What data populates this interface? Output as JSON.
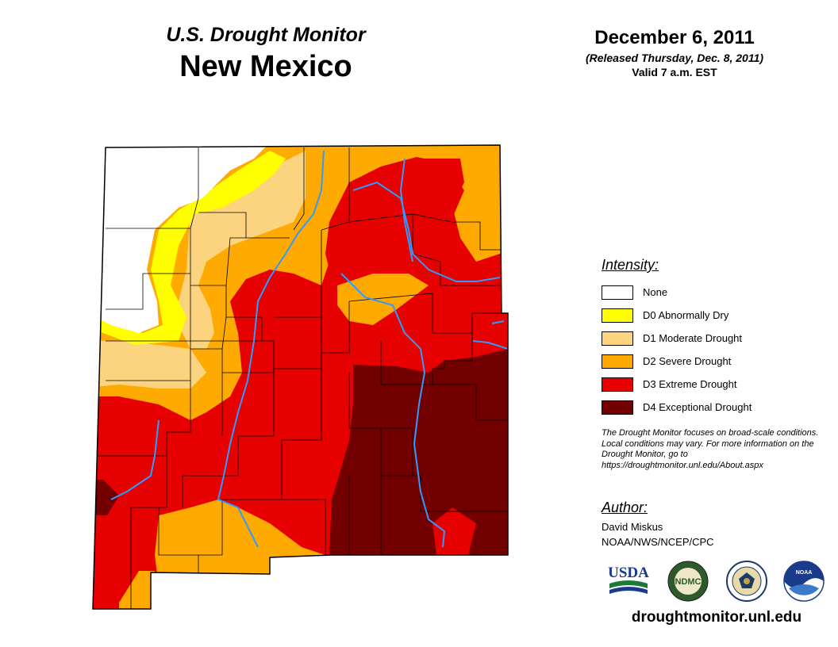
{
  "header": {
    "subtitle": "U.S. Drought Monitor",
    "state": "New Mexico",
    "date": "December 6, 2011",
    "released": "(Released Thursday, Dec. 8, 2011)",
    "valid": "Valid 7 a.m. EST"
  },
  "legend": {
    "title": "Intensity:",
    "items": [
      {
        "label": "None",
        "color": "#ffffff"
      },
      {
        "label": "D0 Abnormally Dry",
        "color": "#ffff00"
      },
      {
        "label": "D1 Moderate Drought",
        "color": "#fcd37f"
      },
      {
        "label": "D2 Severe Drought",
        "color": "#ffaa00"
      },
      {
        "label": "D3 Extreme Drought",
        "color": "#e60000"
      },
      {
        "label": "D4 Exceptional Drought",
        "color": "#730000"
      }
    ]
  },
  "note": "The Drought Monitor focuses on broad-scale conditions. Local conditions may vary. For more information on the Drought Monitor, go to https://droughtmonitor.unl.edu/About.aspx",
  "author": {
    "title": "Author:",
    "name": "David Miskus",
    "org": "NOAA/NWS/NCEP/CPC"
  },
  "logos": {
    "usda": "USDA",
    "ndmc": "NDMC",
    "noaa": "NOAA"
  },
  "url": "droughtmonitor.unl.edu",
  "colors": {
    "river": "#3399ff",
    "county_border": "#000000"
  }
}
